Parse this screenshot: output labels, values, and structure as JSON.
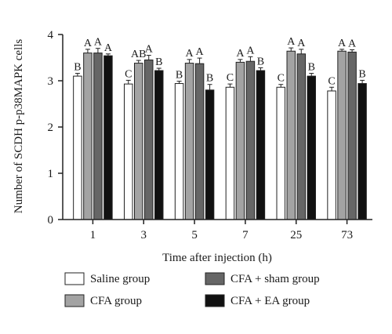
{
  "chart_data": {
    "type": "bar",
    "title": "",
    "xlabel": "Time after injection (h)",
    "ylabel": "Number of SCDH p-p38MAPK cells",
    "ylim": [
      0,
      4
    ],
    "yticks": [
      "0",
      "1",
      "2",
      "3",
      "4"
    ],
    "categories": [
      "1",
      "3",
      "5",
      "7",
      "25",
      "73"
    ],
    "series": [
      {
        "name": "Saline group",
        "color": "#ffffff",
        "values": [
          3.1,
          2.93,
          2.94,
          2.86,
          2.86,
          2.78
        ],
        "errors": [
          0.06,
          0.08,
          0.05,
          0.07,
          0.06,
          0.08
        ],
        "labels": [
          "B",
          "C",
          "B",
          "C",
          "C",
          "C"
        ]
      },
      {
        "name": "CFA group",
        "color": "#a3a3a3",
        "values": [
          3.6,
          3.38,
          3.38,
          3.4,
          3.64,
          3.64
        ],
        "errors": [
          0.08,
          0.06,
          0.08,
          0.06,
          0.07,
          0.04
        ],
        "labels": [
          "A",
          "AB",
          "A",
          "A",
          "A",
          "A"
        ]
      },
      {
        "name": "CFA + sham group",
        "color": "#666666",
        "values": [
          3.6,
          3.45,
          3.37,
          3.42,
          3.58,
          3.62
        ],
        "errors": [
          0.1,
          0.1,
          0.12,
          0.1,
          0.1,
          0.05
        ],
        "labels": [
          "A",
          "A",
          "A",
          "A",
          "A",
          "A"
        ]
      },
      {
        "name": "CFA + EA group",
        "color": "#111111",
        "values": [
          3.54,
          3.22,
          2.8,
          3.22,
          3.1,
          2.94
        ],
        "errors": [
          0.04,
          0.05,
          0.12,
          0.06,
          0.06,
          0.07
        ],
        "labels": [
          "A",
          "B",
          "B",
          "B",
          "B",
          "B"
        ]
      }
    ],
    "grid": false,
    "legend_position": "bottom"
  }
}
